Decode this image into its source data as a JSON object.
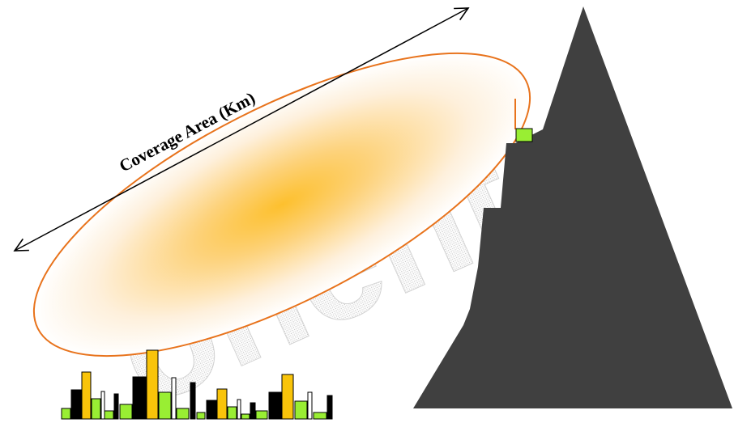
{
  "diagram": {
    "coverage_label": "Coverage Area (Km)",
    "watermark_text": "onents",
    "colors": {
      "coverage_outline": "#e8731c",
      "coverage_fill_core": "#fdc02e",
      "mountain": "#404040",
      "antenna_box": "#99ee33",
      "building_yellow": "#f9c40a",
      "building_green": "#99ee33",
      "building_black": "#000000",
      "arrow": "#000000"
    },
    "icons": [
      "double-headed-arrow",
      "mountain-silhouette",
      "antenna-box",
      "city-buildings"
    ]
  }
}
